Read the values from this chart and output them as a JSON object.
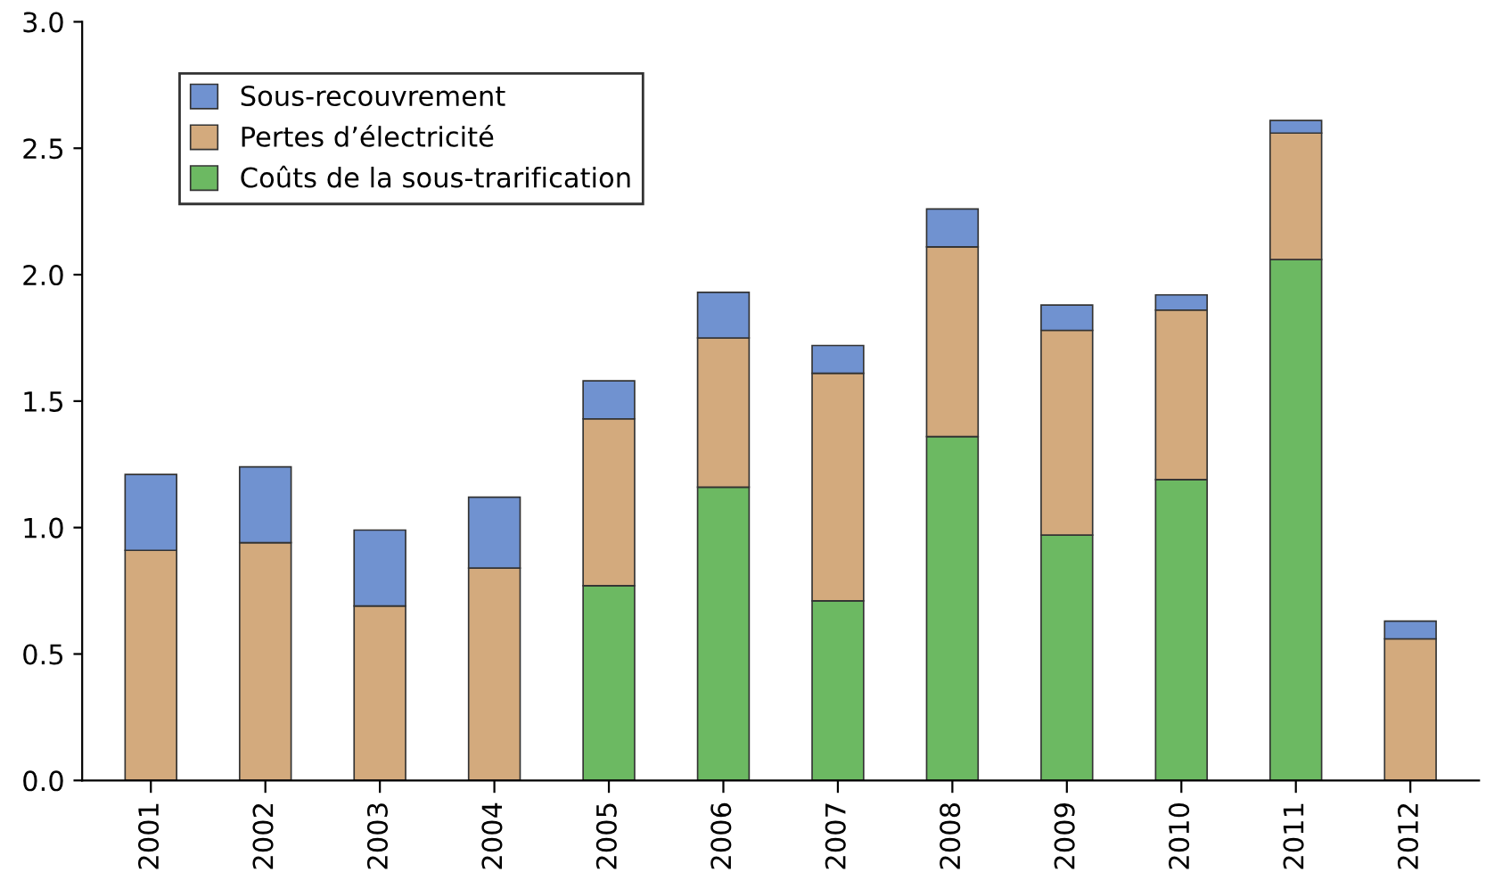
{
  "chart_data": {
    "type": "bar",
    "stacked": true,
    "categories": [
      "2001",
      "2002",
      "2003",
      "2004",
      "2005",
      "2006",
      "2007",
      "2008",
      "2009",
      "2010",
      "2011",
      "2012"
    ],
    "series": [
      {
        "name": "Coûts de la sous-trarification",
        "color": "#6cb962",
        "values": [
          0,
          0,
          0,
          0,
          0.77,
          1.16,
          0.71,
          1.36,
          0.97,
          1.19,
          2.06,
          0
        ]
      },
      {
        "name": "Pertes d’électricité",
        "color": "#d3aa7d",
        "values": [
          0.91,
          0.94,
          0.69,
          0.84,
          0.66,
          0.59,
          0.9,
          0.75,
          0.81,
          0.67,
          0.5,
          0.56
        ]
      },
      {
        "name": "Sous-recouvrement",
        "color": "#7092d0",
        "values": [
          0.3,
          0.3,
          0.3,
          0.28,
          0.15,
          0.18,
          0.11,
          0.15,
          0.1,
          0.06,
          0.05,
          0.07
        ]
      }
    ],
    "ylim": [
      0,
      3.0
    ],
    "yticks": [
      {
        "value": 0,
        "label": "0.0"
      },
      {
        "value": 0.5,
        "label": "0.5"
      },
      {
        "value": 1,
        "label": "1.0"
      },
      {
        "value": 1.5,
        "label": "1.5"
      },
      {
        "value": 2,
        "label": "2.0"
      },
      {
        "value": 2.5,
        "label": "2.5"
      },
      {
        "value": 3,
        "label": "3.0"
      }
    ],
    "grid": false,
    "legend": "top left"
  }
}
